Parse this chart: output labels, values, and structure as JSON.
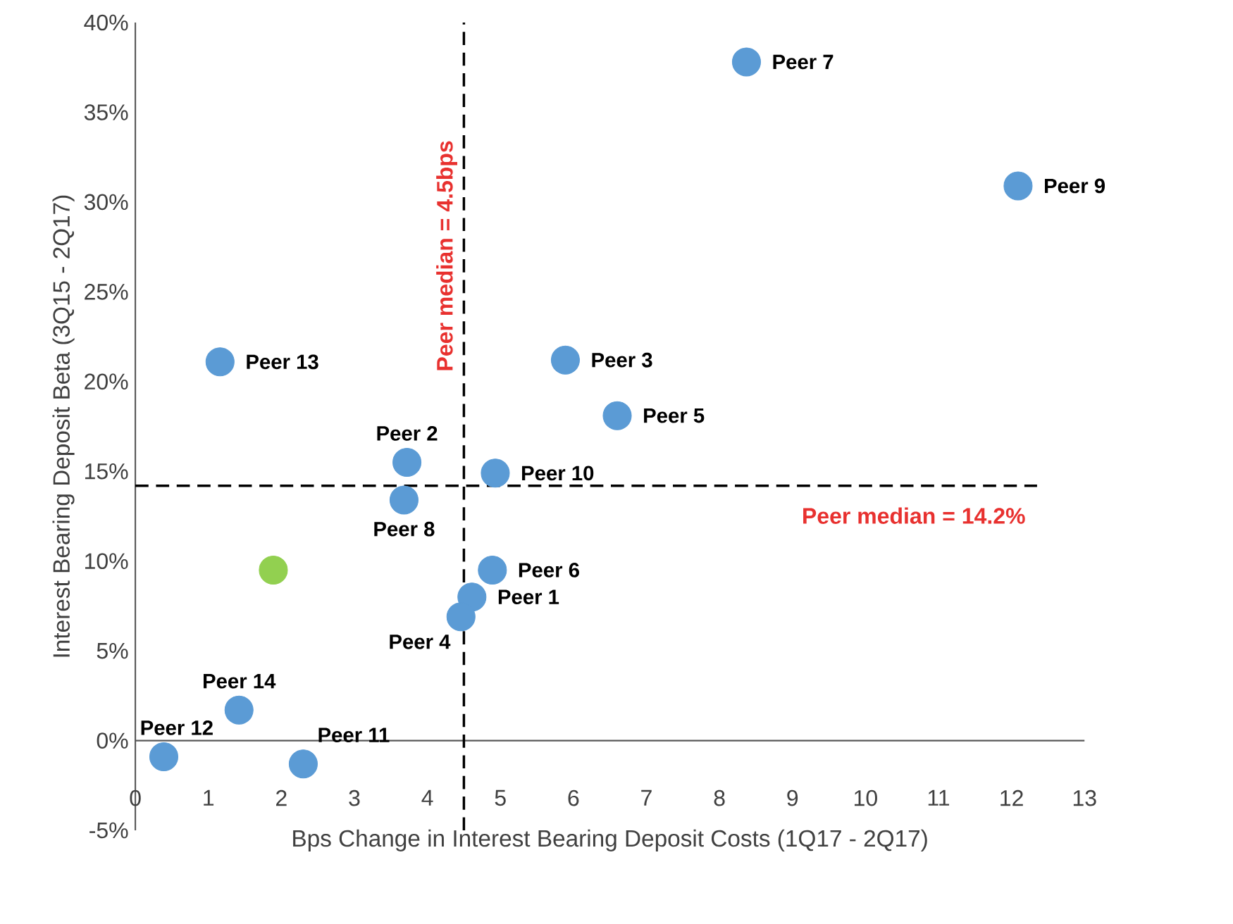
{
  "chart_data": {
    "type": "scatter",
    "xlabel": "Bps Change in Interest Bearing Deposit Costs (1Q17 - 2Q17)",
    "ylabel": "Interest Bearing Deposit Beta (3Q15 - 2Q17)",
    "xlim": [
      0,
      13
    ],
    "ylim": [
      -5,
      40
    ],
    "xticks": [
      0,
      1,
      2,
      3,
      4,
      5,
      6,
      7,
      8,
      9,
      10,
      11,
      12,
      13
    ],
    "yticks": [
      {
        "value": -5,
        "label": "-5%"
      },
      {
        "value": 0,
        "label": "0%"
      },
      {
        "value": 5,
        "label": "5%"
      },
      {
        "value": 10,
        "label": "10%"
      },
      {
        "value": 15,
        "label": "15%"
      },
      {
        "value": 20,
        "label": "20%"
      },
      {
        "value": 25,
        "label": "25%"
      },
      {
        "value": 30,
        "label": "30%"
      },
      {
        "value": 35,
        "label": "35%"
      },
      {
        "value": 40,
        "label": "40%"
      }
    ],
    "marker": "circle",
    "series": [
      {
        "color": "#5b9bd5",
        "x": [
          4.61,
          3.72,
          5.89,
          4.46,
          6.6,
          4.89,
          8.37,
          3.68,
          12.09,
          4.93,
          2.3,
          0.39,
          1.16,
          1.42
        ],
        "values": [
          8.0,
          15.5,
          21.2,
          6.9,
          18.1,
          9.5,
          37.8,
          13.4,
          30.9,
          14.9,
          -1.3,
          -0.9,
          21.1,
          1.7
        ]
      },
      {
        "color": "#92d050",
        "x": [
          1.89
        ],
        "values": [
          9.5
        ]
      }
    ],
    "annotations": [
      {
        "text": "Peer 1",
        "x": 4.61,
        "y": 8.0
      },
      {
        "text": "Peer 2",
        "x": 3.72,
        "y": 15.5
      },
      {
        "text": "Peer 3",
        "x": 5.89,
        "y": 21.2
      },
      {
        "text": "Peer 4",
        "x": 4.46,
        "y": 6.9
      },
      {
        "text": "Peer 5",
        "x": 6.6,
        "y": 18.1
      },
      {
        "text": "Peer 6",
        "x": 4.89,
        "y": 9.5
      },
      {
        "text": "Peer 7",
        "x": 8.37,
        "y": 37.8
      },
      {
        "text": "Peer 8",
        "x": 3.68,
        "y": 13.4
      },
      {
        "text": "Peer 9",
        "x": 12.09,
        "y": 30.9
      },
      {
        "text": "Peer 10",
        "x": 4.93,
        "y": 14.9
      },
      {
        "text": "Peer 11",
        "x": 2.3,
        "y": -1.3
      },
      {
        "text": "Peer 12",
        "x": 0.39,
        "y": -0.9
      },
      {
        "text": "Peer 13",
        "x": 1.16,
        "y": 21.1
      },
      {
        "text": "Peer 14",
        "x": 1.42,
        "y": 1.7
      }
    ],
    "ref_lines": [
      {
        "axis": "x",
        "value": 4.5,
        "label": "Peer median = 4.5bps",
        "color": "#000000",
        "line_style": "dashed"
      },
      {
        "axis": "y",
        "value": 14.2,
        "label": "Peer median = 14.2%",
        "color": "#000000",
        "line_style": "dashed"
      }
    ]
  }
}
